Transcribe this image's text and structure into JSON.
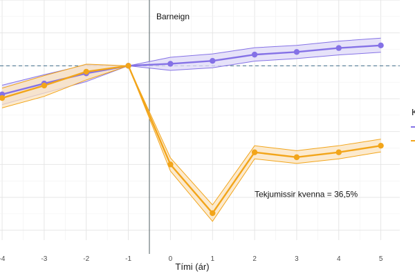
{
  "chart_data": {
    "type": "line",
    "xlabel": "Tími (ár)",
    "ylabel": "",
    "x": [
      -4,
      -3,
      -2,
      -1,
      0,
      1,
      2,
      3,
      4,
      5
    ],
    "xlim": [
      -4.05,
      5.45
    ],
    "ylim": [
      -0.53,
      0.2
    ],
    "y_ticks_shown": false,
    "grid": true,
    "reference_y": 0,
    "event_x": -0.5,
    "event_label": "Barneign",
    "annotation": {
      "text": "Tekjumissir kvenna = 36,5%",
      "x": 2,
      "y": -0.39
    },
    "legend_title": "K",
    "legend_position": "right",
    "series": [
      {
        "color": "#8471e6",
        "fill": "#ddd8f7",
        "values": [
          -0.087,
          -0.054,
          -0.023,
          0.0,
          0.006,
          0.015,
          0.034,
          0.042,
          0.054,
          0.062
        ],
        "lower": [
          -0.118,
          -0.083,
          -0.048,
          0.0,
          -0.014,
          -0.006,
          0.014,
          0.022,
          0.033,
          0.041
        ],
        "upper": [
          -0.059,
          -0.027,
          0.003,
          0.0,
          0.026,
          0.036,
          0.055,
          0.062,
          0.075,
          0.084
        ]
      },
      {
        "color": "#f2a51a",
        "fill": "#fbe3bd",
        "values": [
          -0.098,
          -0.06,
          -0.018,
          0.0,
          -0.3,
          -0.448,
          -0.263,
          -0.278,
          -0.263,
          -0.243
        ],
        "lower": [
          -0.128,
          -0.093,
          -0.043,
          0.0,
          -0.32,
          -0.473,
          -0.283,
          -0.297,
          -0.283,
          -0.262
        ],
        "upper": [
          -0.068,
          -0.03,
          0.005,
          0.0,
          -0.28,
          -0.423,
          -0.243,
          -0.258,
          -0.243,
          -0.223
        ]
      }
    ]
  }
}
